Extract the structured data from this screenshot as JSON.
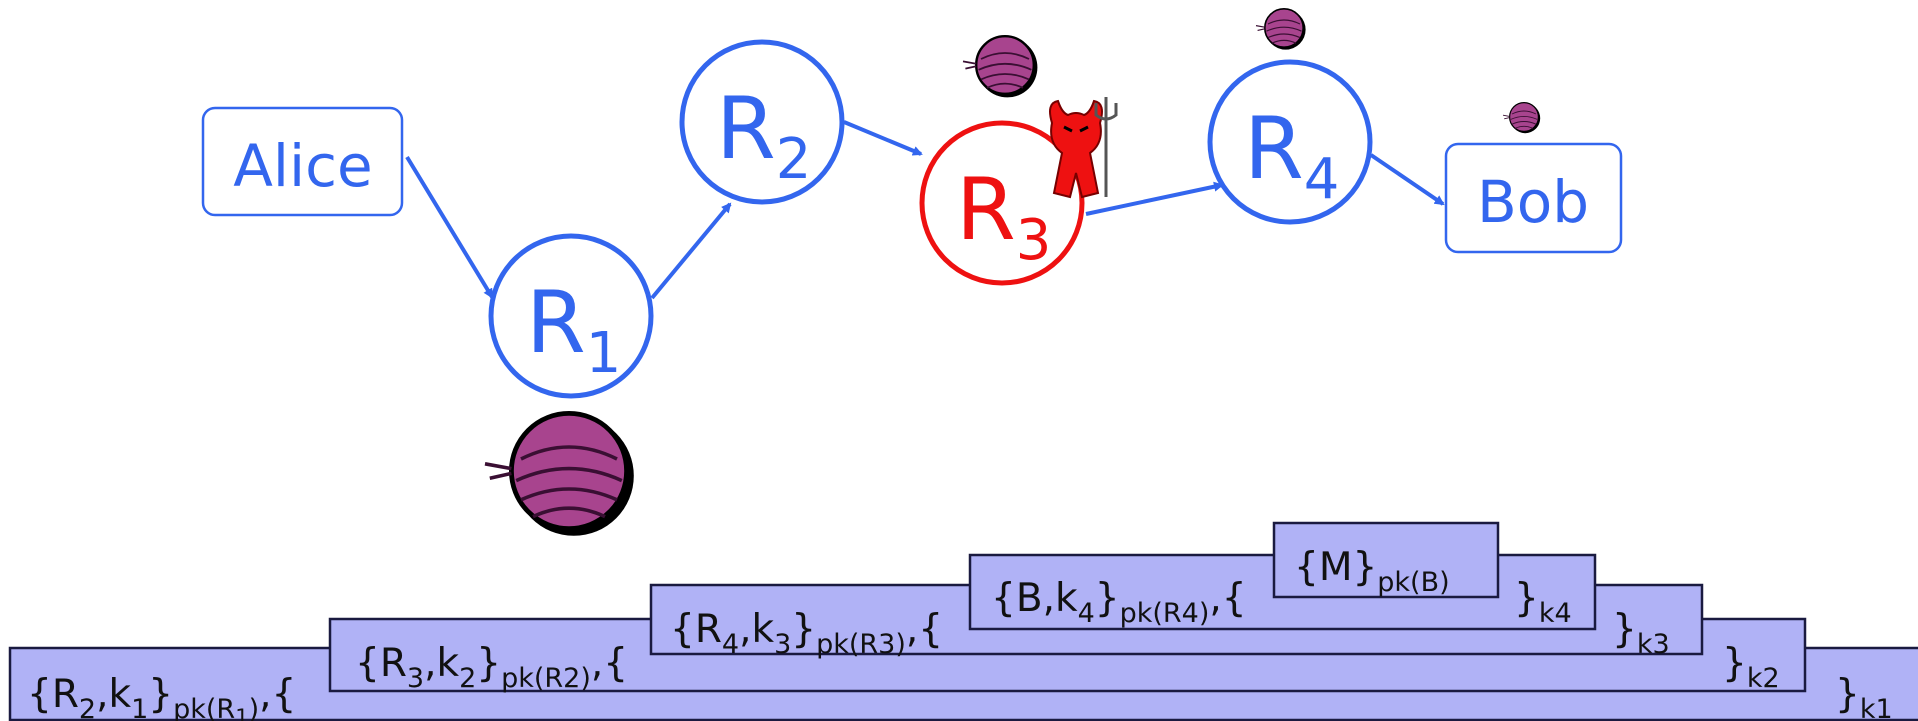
{
  "nodes": [
    {
      "label": "Alice"
    },
    {
      "label": "R",
      "sub": "1"
    },
    {
      "label": "R",
      "sub": "2"
    },
    {
      "label": "R",
      "sub": "3"
    },
    {
      "label": "R",
      "sub": "4"
    },
    {
      "label": "Bob"
    }
  ],
  "layers": [
    {
      "open": [
        {
          "text": "{R"
        },
        {
          "text": "2",
          "level": 1
        },
        {
          "text": ",k"
        },
        {
          "text": "1",
          "level": 1
        },
        {
          "text": "}"
        },
        {
          "text": "pk(R",
          "level": 1
        },
        {
          "text": "1",
          "level": 2
        },
        {
          "text": ")",
          "level": 1
        },
        {
          "text": ",{"
        }
      ],
      "close": [
        {
          "text": "}"
        },
        {
          "text": "k1",
          "level": 1
        }
      ]
    },
    {
      "open": [
        {
          "text": "{R"
        },
        {
          "text": "3",
          "level": 1
        },
        {
          "text": ",k"
        },
        {
          "text": "2",
          "level": 1
        },
        {
          "text": "}"
        },
        {
          "text": "pk(R2)",
          "level": 1
        },
        {
          "text": ",{"
        }
      ],
      "close": [
        {
          "text": "}"
        },
        {
          "text": "k2",
          "level": 1
        }
      ]
    },
    {
      "open": [
        {
          "text": "{R"
        },
        {
          "text": "4",
          "level": 1
        },
        {
          "text": ",k"
        },
        {
          "text": "3",
          "level": 1
        },
        {
          "text": "}"
        },
        {
          "text": "pk(R3)",
          "level": 1
        },
        {
          "text": ",{"
        }
      ],
      "close": [
        {
          "text": "}"
        },
        {
          "text": "k3",
          "level": 1
        }
      ]
    },
    {
      "open": [
        {
          "text": "{B,k"
        },
        {
          "text": "4",
          "level": 1
        },
        {
          "text": "}"
        },
        {
          "text": "pk(R4)",
          "level": 1
        },
        {
          "text": ",{"
        }
      ],
      "close": [
        {
          "text": "}"
        },
        {
          "text": "k4",
          "level": 1
        }
      ]
    },
    {
      "open": [
        {
          "text": "{M}"
        },
        {
          "text": "pk(B)",
          "level": 1
        }
      ]
    }
  ]
}
